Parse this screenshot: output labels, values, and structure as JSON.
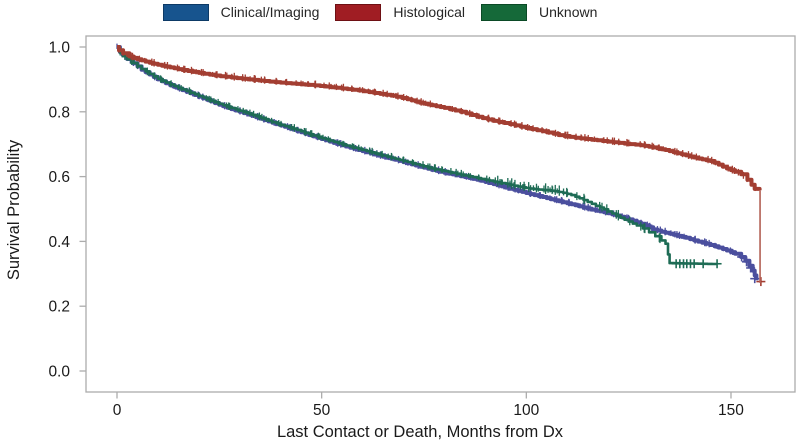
{
  "legend": {
    "items": [
      {
        "id": "clinical-imaging",
        "label": "Clinical/Imaging",
        "fill": "#17548E",
        "border": "#0D3A66"
      },
      {
        "id": "histological",
        "label": "Histological",
        "fill": "#A01D23",
        "border": "#6E1014"
      },
      {
        "id": "unknown",
        "label": "Unknown",
        "fill": "#156939",
        "border": "#0B4A26"
      }
    ]
  },
  "chart_data": {
    "type": "line",
    "subtype": "kaplan-meier-step",
    "title": "",
    "xlabel": "Last Contact or Death, Months from Dx",
    "ylabel": "Survival Probability",
    "xlim": [
      0,
      166
    ],
    "ylim": [
      0,
      1
    ],
    "xticks": [
      0,
      50,
      100,
      150
    ],
    "xtick_labels": [
      "0",
      "50",
      "100",
      "150"
    ],
    "yticks": [
      1.0,
      0.8,
      0.6,
      0.4,
      0.2,
      0.0
    ],
    "ytick_labels": [
      "1.0",
      "0.8",
      "0.6",
      "0.4",
      "0.2",
      "0.0"
    ],
    "grid": false,
    "legend_position": "top",
    "frame_color": "#ACACAC",
    "series": [
      {
        "name": "Clinical/Imaging",
        "color": "#4B4F9E",
        "line_width": 4,
        "fuzz": [
          {
            "from": 0,
            "to": 152,
            "step": 1.0,
            "height": 5
          }
        ],
        "censors": [
          [
            152.6,
            0.352
          ],
          [
            153.8,
            0.337
          ],
          [
            154.8,
            0.318
          ],
          [
            155.8,
            0.285
          ]
        ],
        "points": [
          [
            0,
            1.0
          ],
          [
            0.7,
            0.985
          ],
          [
            1.5,
            0.974
          ],
          [
            2.5,
            0.963
          ],
          [
            4,
            0.95
          ],
          [
            6,
            0.93
          ],
          [
            8,
            0.915
          ],
          [
            10,
            0.9
          ],
          [
            12,
            0.888
          ],
          [
            14,
            0.877
          ],
          [
            16,
            0.867
          ],
          [
            18,
            0.857
          ],
          [
            20,
            0.847
          ],
          [
            23,
            0.832
          ],
          [
            26,
            0.817
          ],
          [
            29,
            0.804
          ],
          [
            32,
            0.792
          ],
          [
            35,
            0.779
          ],
          [
            38,
            0.766
          ],
          [
            41,
            0.754
          ],
          [
            44,
            0.741
          ],
          [
            47,
            0.728
          ],
          [
            50,
            0.716
          ],
          [
            53,
            0.704
          ],
          [
            56,
            0.693
          ],
          [
            59,
            0.682
          ],
          [
            62,
            0.672
          ],
          [
            65,
            0.661
          ],
          [
            68,
            0.652
          ],
          [
            71,
            0.641
          ],
          [
            74,
            0.631
          ],
          [
            77,
            0.621
          ],
          [
            80,
            0.612
          ],
          [
            83,
            0.604
          ],
          [
            86,
            0.596
          ],
          [
            89,
            0.587
          ],
          [
            92,
            0.577
          ],
          [
            95,
            0.566
          ],
          [
            98,
            0.556
          ],
          [
            101,
            0.546
          ],
          [
            104,
            0.537
          ],
          [
            107,
            0.527
          ],
          [
            110,
            0.518
          ],
          [
            113,
            0.508
          ],
          [
            116,
            0.498
          ],
          [
            119,
            0.49
          ],
          [
            122,
            0.48
          ],
          [
            125,
            0.468
          ],
          [
            127,
            0.459
          ],
          [
            129,
            0.45
          ],
          [
            131,
            0.437
          ],
          [
            133,
            0.43
          ],
          [
            135,
            0.424
          ],
          [
            137,
            0.417
          ],
          [
            139,
            0.411
          ],
          [
            141,
            0.403
          ],
          [
            143,
            0.396
          ],
          [
            145,
            0.389
          ],
          [
            147,
            0.381
          ],
          [
            149,
            0.372
          ],
          [
            151,
            0.362
          ],
          [
            152.5,
            0.352
          ],
          [
            153.5,
            0.34
          ],
          [
            154.5,
            0.325
          ],
          [
            155.3,
            0.31
          ],
          [
            155.8,
            0.295
          ],
          [
            156.2,
            0.28
          ]
        ]
      },
      {
        "name": "Unknown",
        "color": "#1E6C55",
        "line_width": 2.6,
        "fuzz": [
          {
            "from": 0,
            "to": 110,
            "step": 1.0,
            "height": 5
          },
          {
            "from": 93,
            "to": 133,
            "step": 1.6,
            "height": 8
          }
        ],
        "censors": [
          [
            136.6,
            0.331
          ],
          [
            137.5,
            0.331
          ],
          [
            138.4,
            0.331
          ],
          [
            139.2,
            0.331
          ],
          [
            140.1,
            0.331
          ],
          [
            141.0,
            0.331
          ],
          [
            143.2,
            0.331
          ],
          [
            146.6,
            0.331
          ]
        ],
        "points": [
          [
            0,
            1.0
          ],
          [
            0.7,
            0.983
          ],
          [
            1.5,
            0.972
          ],
          [
            2.5,
            0.962
          ],
          [
            4,
            0.95
          ],
          [
            6,
            0.932
          ],
          [
            8,
            0.917
          ],
          [
            10,
            0.902
          ],
          [
            12,
            0.89
          ],
          [
            14,
            0.879
          ],
          [
            16,
            0.869
          ],
          [
            18,
            0.859
          ],
          [
            20,
            0.849
          ],
          [
            23,
            0.834
          ],
          [
            26,
            0.82
          ],
          [
            29,
            0.807
          ],
          [
            32,
            0.795
          ],
          [
            35,
            0.782
          ],
          [
            38,
            0.768
          ],
          [
            41,
            0.756
          ],
          [
            44,
            0.744
          ],
          [
            47,
            0.731
          ],
          [
            50,
            0.719
          ],
          [
            53,
            0.707
          ],
          [
            56,
            0.696
          ],
          [
            59,
            0.686
          ],
          [
            62,
            0.675
          ],
          [
            65,
            0.665
          ],
          [
            68,
            0.655
          ],
          [
            71,
            0.645
          ],
          [
            74,
            0.635
          ],
          [
            77,
            0.625
          ],
          [
            80,
            0.617
          ],
          [
            83,
            0.609
          ],
          [
            86,
            0.601
          ],
          [
            89,
            0.593
          ],
          [
            92,
            0.585
          ],
          [
            95,
            0.578
          ],
          [
            97,
            0.572
          ],
          [
            99,
            0.567
          ],
          [
            101,
            0.563
          ],
          [
            103,
            0.56
          ],
          [
            105,
            0.558
          ],
          [
            107,
            0.555
          ],
          [
            109,
            0.55
          ],
          [
            111,
            0.543
          ],
          [
            113,
            0.533
          ],
          [
            115,
            0.522
          ],
          [
            117,
            0.51
          ],
          [
            119,
            0.499
          ],
          [
            121,
            0.486
          ],
          [
            123,
            0.473
          ],
          [
            125,
            0.461
          ],
          [
            127,
            0.449
          ],
          [
            128.5,
            0.44
          ],
          [
            130,
            0.428
          ],
          [
            131.5,
            0.416
          ],
          [
            133,
            0.403
          ],
          [
            134,
            0.393
          ],
          [
            134.6,
            0.36
          ],
          [
            135,
            0.333
          ],
          [
            146.6,
            0.33
          ]
        ]
      },
      {
        "name": "Histological",
        "color": "#A33E32",
        "line_width": 4,
        "fuzz": [
          {
            "from": 0,
            "to": 156,
            "step": 1.0,
            "height": 5
          }
        ],
        "censors": [
          [
            157.3,
            0.276
          ]
        ],
        "drop": {
          "month": 157.1,
          "from": 0.558,
          "to": 0.272,
          "color": "#B26054",
          "width": 1.6
        },
        "points": [
          [
            0,
            1.0
          ],
          [
            0.5,
            0.99
          ],
          [
            1.5,
            0.981
          ],
          [
            3,
            0.971
          ],
          [
            5,
            0.962
          ],
          [
            7,
            0.955
          ],
          [
            10,
            0.945
          ],
          [
            13,
            0.937
          ],
          [
            16,
            0.929
          ],
          [
            20,
            0.92
          ],
          [
            24,
            0.912
          ],
          [
            28,
            0.906
          ],
          [
            32,
            0.9
          ],
          [
            36,
            0.895
          ],
          [
            40,
            0.89
          ],
          [
            44,
            0.886
          ],
          [
            47,
            0.883
          ],
          [
            51,
            0.878
          ],
          [
            55,
            0.872
          ],
          [
            59,
            0.866
          ],
          [
            63,
            0.858
          ],
          [
            67,
            0.85
          ],
          [
            71,
            0.839
          ],
          [
            74,
            0.828
          ],
          [
            77,
            0.82
          ],
          [
            80,
            0.812
          ],
          [
            84,
            0.8
          ],
          [
            88,
            0.785
          ],
          [
            92,
            0.772
          ],
          [
            96,
            0.762
          ],
          [
            100,
            0.75
          ],
          [
            104,
            0.74
          ],
          [
            108,
            0.728
          ],
          [
            112,
            0.72
          ],
          [
            116,
            0.714
          ],
          [
            120,
            0.708
          ],
          [
            124,
            0.702
          ],
          [
            128,
            0.697
          ],
          [
            131,
            0.69
          ],
          [
            134,
            0.682
          ],
          [
            137,
            0.672
          ],
          [
            140,
            0.662
          ],
          [
            143,
            0.653
          ],
          [
            145,
            0.648
          ],
          [
            147,
            0.637
          ],
          [
            149,
            0.625
          ],
          [
            151,
            0.615
          ],
          [
            152.5,
            0.607
          ],
          [
            154,
            0.59
          ],
          [
            155,
            0.575
          ],
          [
            155.8,
            0.562
          ],
          [
            157,
            0.558
          ]
        ]
      }
    ]
  }
}
